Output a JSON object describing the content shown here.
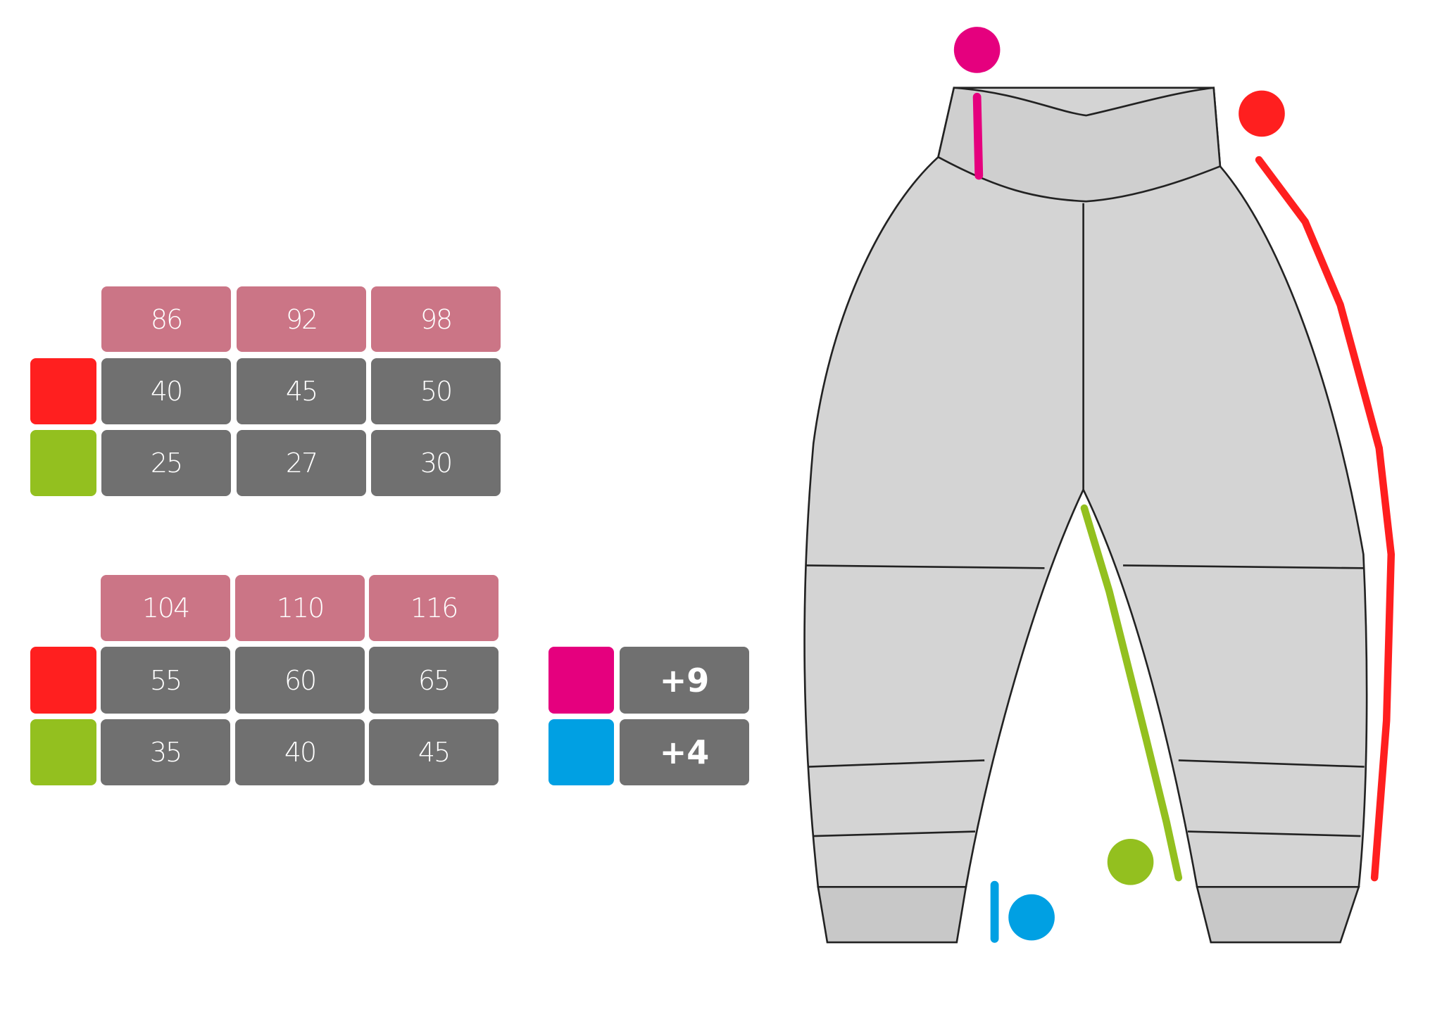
{
  "colors": {
    "size_header": "#cb7586",
    "value_cell": "#707070",
    "length": "#ff1f1f",
    "inseam": "#93c01f",
    "waistband": "#e5007e",
    "cuff": "#00a0e3"
  },
  "table1": {
    "sizes": [
      "86",
      "92",
      "98"
    ],
    "length": [
      "40",
      "45",
      "50"
    ],
    "inseam": [
      "25",
      "27",
      "30"
    ]
  },
  "table2": {
    "sizes": [
      "104",
      "110",
      "116"
    ],
    "length": [
      "55",
      "60",
      "65"
    ],
    "inseam": [
      "35",
      "40",
      "45"
    ]
  },
  "extras": {
    "waistband": "+9",
    "cuff": "+4"
  }
}
